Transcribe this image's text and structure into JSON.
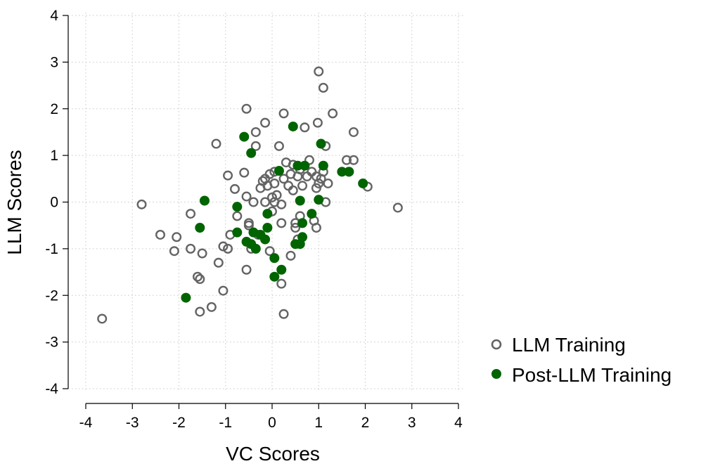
{
  "chart_data": {
    "type": "scatter",
    "xlabel": "VC Scores",
    "ylabel": "LLM Scores",
    "xlim": [
      -4,
      4
    ],
    "ylim": [
      -4,
      4
    ],
    "xticks": [
      "-4",
      "-3",
      "-2",
      "-1",
      "0",
      "1",
      "2",
      "3",
      "4"
    ],
    "yticks": [
      "4",
      "3",
      "2",
      "1",
      "0",
      "-1",
      "-2",
      "-3",
      "-4"
    ],
    "grid": true,
    "legend_position": "right",
    "series": [
      {
        "name": "LLM Training",
        "marker": "hollow-circle",
        "color": "#646464",
        "points": [
          [
            -3.65,
            -2.5
          ],
          [
            -2.8,
            -0.05
          ],
          [
            -2.4,
            -0.7
          ],
          [
            -2.05,
            -0.75
          ],
          [
            -2.1,
            -1.05
          ],
          [
            -1.75,
            -0.25
          ],
          [
            -1.75,
            -1.0
          ],
          [
            -1.6,
            -1.6
          ],
          [
            -1.55,
            -1.65
          ],
          [
            -1.5,
            -1.1
          ],
          [
            -1.55,
            -2.35
          ],
          [
            -1.3,
            -2.25
          ],
          [
            -1.2,
            1.25
          ],
          [
            -1.15,
            -1.3
          ],
          [
            -1.05,
            -1.9
          ],
          [
            -1.05,
            -0.95
          ],
          [
            -0.95,
            -1.0
          ],
          [
            -0.9,
            -0.7
          ],
          [
            -0.95,
            0.57
          ],
          [
            -0.8,
            0.28
          ],
          [
            -0.75,
            -0.3
          ],
          [
            -0.6,
            0.63
          ],
          [
            -0.55,
            0.12
          ],
          [
            -0.55,
            -1.45
          ],
          [
            -0.55,
            2.0
          ],
          [
            -0.5,
            -0.45
          ],
          [
            -0.5,
            -0.5
          ],
          [
            -0.45,
            -1.0
          ],
          [
            -0.4,
            0.0
          ],
          [
            -0.35,
            1.5
          ],
          [
            -0.35,
            1.2
          ],
          [
            -0.3,
            -0.7
          ],
          [
            -0.25,
            0.3
          ],
          [
            -0.2,
            0.45
          ],
          [
            -0.15,
            0.5
          ],
          [
            -0.15,
            1.7
          ],
          [
            -0.1,
            0.35
          ],
          [
            -0.05,
            0.6
          ],
          [
            0.0,
            0.1
          ],
          [
            0.05,
            0.0
          ],
          [
            0.0,
            -0.2
          ],
          [
            0.05,
            0.65
          ],
          [
            0.1,
            0.15
          ],
          [
            0.15,
            1.2
          ],
          [
            0.2,
            -0.05
          ],
          [
            0.2,
            -0.45
          ],
          [
            0.2,
            -1.75
          ],
          [
            0.25,
            1.9
          ],
          [
            0.25,
            0.5
          ],
          [
            0.3,
            0.85
          ],
          [
            0.35,
            0.35
          ],
          [
            0.4,
            0.6
          ],
          [
            0.45,
            0.25
          ],
          [
            0.45,
            0.8
          ],
          [
            0.5,
            -0.45
          ],
          [
            0.5,
            -0.55
          ],
          [
            0.55,
            0.55
          ],
          [
            0.6,
            0.7
          ],
          [
            0.6,
            -0.3
          ],
          [
            0.65,
            0.35
          ],
          [
            0.7,
            1.6
          ],
          [
            0.75,
            0.55
          ],
          [
            0.8,
            0.9
          ],
          [
            0.85,
            0.65
          ],
          [
            0.9,
            -0.4
          ],
          [
            0.95,
            -0.55
          ],
          [
            0.95,
            0.55
          ],
          [
            0.95,
            0.3
          ],
          [
            1.0,
            0.4
          ],
          [
            0.98,
            1.7
          ],
          [
            1.0,
            2.8
          ],
          [
            1.05,
            0.5
          ],
          [
            1.1,
            2.45
          ],
          [
            1.1,
            0.65
          ],
          [
            1.15,
            1.2
          ],
          [
            1.15,
            0.0
          ],
          [
            1.2,
            0.4
          ],
          [
            1.3,
            1.9
          ],
          [
            1.6,
            0.9
          ],
          [
            1.65,
            0.65
          ],
          [
            1.75,
            1.5
          ],
          [
            1.75,
            0.9
          ],
          [
            2.05,
            0.33
          ],
          [
            2.7,
            -0.12
          ],
          [
            0.25,
            -2.4
          ],
          [
            -0.05,
            -1.05
          ],
          [
            0.4,
            -1.15
          ],
          [
            -0.15,
            0.0
          ],
          [
            0.55,
            -0.8
          ],
          [
            0.05,
            0.4
          ]
        ]
      },
      {
        "name": "Post-LLM Training",
        "marker": "filled-circle",
        "color": "#006400",
        "points": [
          [
            -1.85,
            -2.05
          ],
          [
            -1.55,
            -0.55
          ],
          [
            -1.45,
            0.03
          ],
          [
            -0.75,
            -0.1
          ],
          [
            -0.75,
            -0.65
          ],
          [
            -0.6,
            1.4
          ],
          [
            -0.55,
            -0.85
          ],
          [
            -0.45,
            1.05
          ],
          [
            -0.45,
            -0.9
          ],
          [
            -0.4,
            -0.65
          ],
          [
            -0.35,
            -1.0
          ],
          [
            -0.25,
            -0.7
          ],
          [
            -0.15,
            -0.8
          ],
          [
            -0.1,
            -0.25
          ],
          [
            -0.1,
            -0.55
          ],
          [
            0.05,
            -1.2
          ],
          [
            0.05,
            -1.6
          ],
          [
            0.15,
            0.67
          ],
          [
            0.2,
            -1.45
          ],
          [
            0.45,
            1.62
          ],
          [
            0.5,
            -0.9
          ],
          [
            0.55,
            0.78
          ],
          [
            0.6,
            -0.9
          ],
          [
            0.6,
            0.03
          ],
          [
            0.65,
            -0.45
          ],
          [
            0.65,
            -0.75
          ],
          [
            0.7,
            0.78
          ],
          [
            0.85,
            -0.25
          ],
          [
            1.0,
            0.05
          ],
          [
            1.05,
            1.25
          ],
          [
            1.1,
            0.78
          ],
          [
            1.5,
            0.65
          ],
          [
            1.65,
            0.65
          ],
          [
            1.95,
            0.4
          ]
        ]
      }
    ]
  }
}
